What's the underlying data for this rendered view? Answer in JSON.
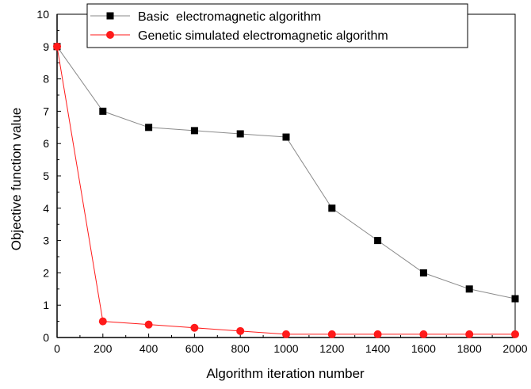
{
  "chart_data": {
    "type": "line",
    "title": "",
    "xlabel": "Algorithm iteration number",
    "ylabel": "Objective function value",
    "xlim": [
      0,
      2000
    ],
    "ylim": [
      0,
      10
    ],
    "x_ticks": [
      0,
      200,
      400,
      600,
      800,
      1000,
      1200,
      1400,
      1600,
      1800,
      2000
    ],
    "y_ticks": [
      0,
      1,
      2,
      3,
      4,
      5,
      6,
      7,
      8,
      9,
      10
    ],
    "grid": false,
    "legend_position": "top-left",
    "x": [
      0,
      200,
      400,
      600,
      800,
      1000,
      1200,
      1400,
      1600,
      1800,
      2000
    ],
    "series": [
      {
        "name": "Basic  electromagnetic algorithm",
        "marker": "square",
        "color": "#000000",
        "line_color": "#8a8a8a",
        "values": [
          9,
          7,
          6.5,
          6.4,
          6.3,
          6.2,
          4,
          3,
          2,
          1.5,
          1.2
        ]
      },
      {
        "name": "Genetic simulated electromagnetic algorithm",
        "marker": "circle",
        "color": "#ff1a1a",
        "line_color": "#ff1a1a",
        "values": [
          9,
          0.5,
          0.4,
          0.3,
          0.2,
          0.1,
          0.1,
          0.1,
          0.1,
          0.1,
          0.1
        ]
      }
    ]
  }
}
